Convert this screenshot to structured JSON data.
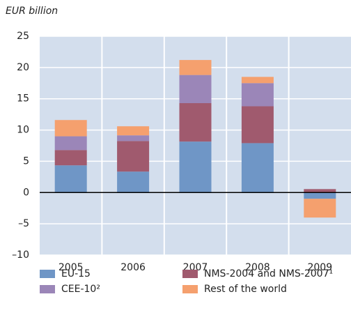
{
  "chart_data": {
    "type": "stacked_bar",
    "y_axis_label": "EUR billion",
    "categories": [
      "2005",
      "2006",
      "2007",
      "2008",
      "2009"
    ],
    "series": [
      {
        "name": "EU-15",
        "color": "#6f96c6",
        "values": [
          4.35,
          3.35,
          8.15,
          7.9,
          -1.0
        ]
      },
      {
        "name": "NMS-2004 and NMS-2007¹",
        "color": "#a05a6e",
        "values": [
          2.45,
          4.9,
          6.15,
          5.9,
          0.55
        ]
      },
      {
        "name": "CEE-10²",
        "color": "#9b86b8",
        "values": [
          2.2,
          0.9,
          4.5,
          3.7,
          0
        ]
      },
      {
        "name": "Rest of the world",
        "color": "#f5a06e",
        "values": [
          2.6,
          1.45,
          2.4,
          1.0,
          -3.0
        ]
      }
    ],
    "ylim": [
      -10,
      25
    ],
    "yticks": [
      {
        "value": -10,
        "label": "–10"
      },
      {
        "value": -5,
        "label": "–5"
      },
      0,
      5,
      10,
      15,
      20,
      25
    ],
    "grid": true
  }
}
